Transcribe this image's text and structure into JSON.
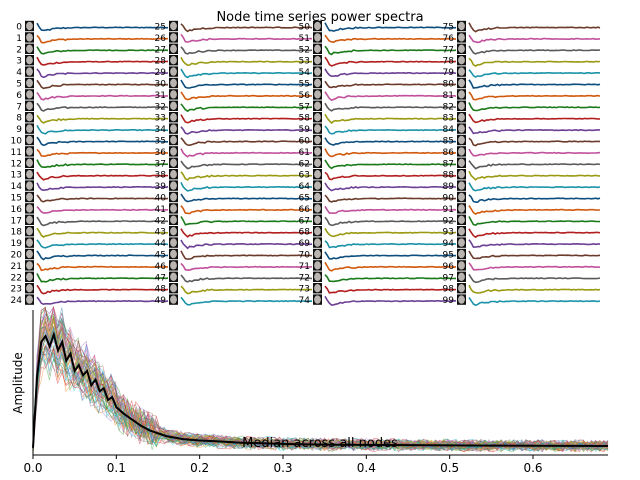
{
  "chart_data": [
    {
      "type": "line",
      "title": "Node time series power spectra",
      "node_labels": [
        "0",
        "1",
        "2",
        "3",
        "4",
        "5",
        "6",
        "7",
        "8",
        "9",
        "10",
        "11",
        "12",
        "13",
        "14",
        "15",
        "16",
        "17",
        "18",
        "19",
        "20",
        "21",
        "22",
        "23",
        "24",
        "25",
        "26",
        "27",
        "28",
        "29",
        "30",
        "31",
        "32",
        "33",
        "34",
        "35",
        "36",
        "37",
        "38",
        "39",
        "40",
        "41",
        "42",
        "43",
        "44",
        "45",
        "46",
        "47",
        "48",
        "49",
        "50",
        "51",
        "52",
        "53",
        "54",
        "55",
        "56",
        "57",
        "58",
        "59",
        "60",
        "61",
        "62",
        "63",
        "64",
        "65",
        "66",
        "67",
        "68",
        "69",
        "70",
        "71",
        "72",
        "73",
        "74",
        "75",
        "76",
        "77",
        "78",
        "79",
        "80",
        "81",
        "82",
        "83",
        "84",
        "85",
        "86",
        "87",
        "88",
        "89",
        "90",
        "91",
        "92",
        "93",
        "94",
        "95",
        "96",
        "97",
        "98",
        "99"
      ],
      "series_colors": [
        "#0e4e7e",
        "#d1590e",
        "#1a7a1a",
        "#b21e1e",
        "#6b3f94",
        "#6b3b2b",
        "#c0509b",
        "#5a5a5a",
        "#9a9a12",
        "#1a93a8"
      ],
      "columns": 4,
      "rows_per_column": 25
    },
    {
      "type": "line",
      "title": "Median across all nodes",
      "xlabel": "",
      "ylabel": "Amplitude",
      "xlim": [
        0.0,
        0.69
      ],
      "x_ticks": [
        "0.0",
        "0.1",
        "0.2",
        "0.3",
        "0.4",
        "0.5",
        "0.6"
      ],
      "x_tick_values": [
        0.0,
        0.1,
        0.2,
        0.3,
        0.4,
        0.5,
        0.6
      ],
      "ylim": [
        0,
        1.0
      ],
      "median_series": {
        "name": "Median across all nodes",
        "x": [
          0.0,
          0.005,
          0.01,
          0.015,
          0.02,
          0.025,
          0.03,
          0.035,
          0.04,
          0.045,
          0.05,
          0.055,
          0.06,
          0.065,
          0.07,
          0.075,
          0.08,
          0.085,
          0.09,
          0.095,
          0.1,
          0.11,
          0.12,
          0.13,
          0.14,
          0.15,
          0.16,
          0.18,
          0.2,
          0.22,
          0.25,
          0.28,
          0.31,
          0.35,
          0.4,
          0.45,
          0.5,
          0.55,
          0.6,
          0.65,
          0.69
        ],
        "values": [
          0.05,
          0.55,
          0.78,
          0.82,
          0.75,
          0.83,
          0.72,
          0.78,
          0.65,
          0.7,
          0.58,
          0.62,
          0.55,
          0.58,
          0.48,
          0.52,
          0.44,
          0.46,
          0.38,
          0.4,
          0.33,
          0.28,
          0.24,
          0.2,
          0.17,
          0.15,
          0.13,
          0.11,
          0.1,
          0.095,
          0.085,
          0.08,
          0.075,
          0.072,
          0.07,
          0.068,
          0.066,
          0.065,
          0.064,
          0.063,
          0.062
        ]
      }
    }
  ]
}
